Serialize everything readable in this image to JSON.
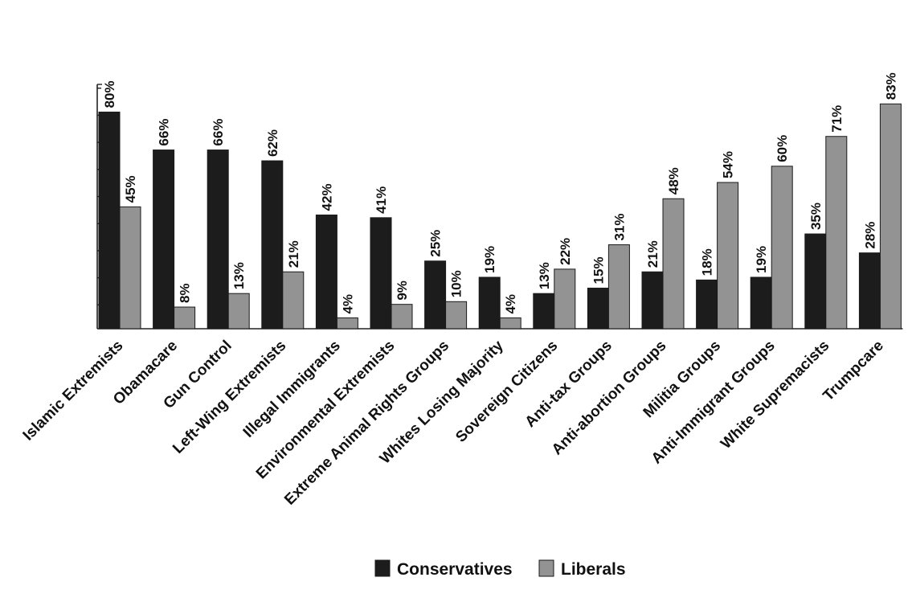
{
  "chart_data": {
    "type": "bar",
    "title": "",
    "xlabel": "",
    "ylabel": "",
    "ylim": [
      0,
      90
    ],
    "grid": false,
    "legend_position": "bottom-center",
    "categories": [
      "Islamic Extremists",
      "Obamacare",
      "Gun Control",
      "Left-Wing Extremists",
      "Illegal Immigrants",
      "Environmental Extremists",
      "Extreme Animal Rights Groups",
      "Whites Losing Majority",
      "Sovereign Citizens",
      "Anti-tax Groups",
      "Anti-abortion Groups",
      "Militia Groups",
      "Anti-Immigrant Groups",
      "White Supremacists",
      "Trumpcare"
    ],
    "series": [
      {
        "name": "Conservatives",
        "color": "#1c1c1c",
        "values": [
          80,
          66,
          66,
          62,
          42,
          41,
          25,
          19,
          13,
          15,
          21,
          18,
          19,
          35,
          28
        ],
        "labels": [
          "80%",
          "66%",
          "66%",
          "62%",
          "42%",
          "41%",
          "25%",
          "19%",
          "13%",
          "15%",
          "21%",
          "18%",
          "19%",
          "35%",
          "28%"
        ]
      },
      {
        "name": "Liberals",
        "color": "#939393",
        "values": [
          45,
          8,
          13,
          21,
          4,
          9,
          10,
          4,
          22,
          31,
          48,
          54,
          60,
          71,
          83
        ],
        "labels": [
          "45%",
          "8%",
          "13%",
          "21%",
          "4%",
          "9%",
          "10%",
          "4%",
          "22%",
          "31%",
          "48%",
          "54%",
          "60%",
          "71%",
          "83%"
        ]
      }
    ]
  }
}
